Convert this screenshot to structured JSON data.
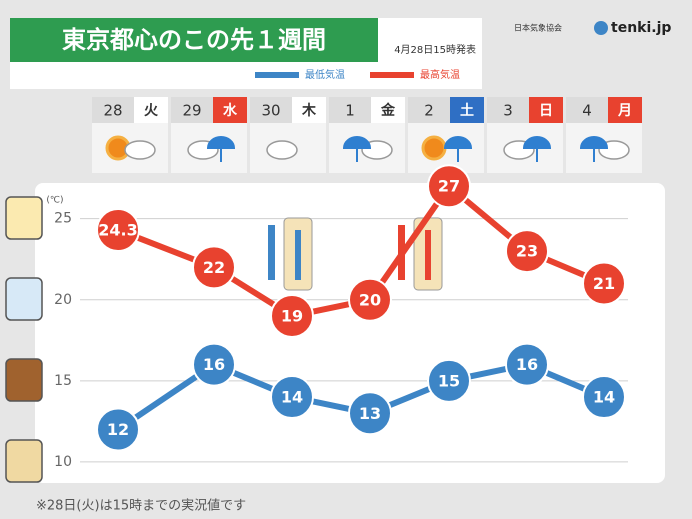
{
  "chart_data": {
    "type": "line",
    "title": "東京都心のこの先１週間",
    "issued": "4月28日15時発表",
    "logo": {
      "org": "日本気象協会",
      "brand": "tenki.jp"
    },
    "dates": [
      "28",
      "29",
      "30",
      "1",
      "2",
      "3",
      "4"
    ],
    "weekdays": [
      "火",
      "水",
      "木",
      "金",
      "土",
      "日",
      "月"
    ],
    "weekday_colors": [
      "#ffffff",
      "#e8422f",
      "#ffffff",
      "#ffffff",
      "#2f6fc4",
      "#e8422f",
      "#e8422f"
    ],
    "y_label": "(℃)",
    "series": [
      {
        "name": "最低気温",
        "color": "#3d85c6",
        "values": [
          12,
          16,
          14,
          13,
          15,
          16,
          14
        ]
      },
      {
        "name": "最高気温",
        "color": "#e8422f",
        "values": [
          24.3,
          22,
          19,
          20,
          27,
          23,
          21
        ]
      }
    ],
    "ylim": [
      8.7,
      27.2
    ],
    "yticks": [
      10,
      15,
      20,
      25
    ],
    "grid": true,
    "note": "※28日(火)は15時までの実況値です"
  }
}
